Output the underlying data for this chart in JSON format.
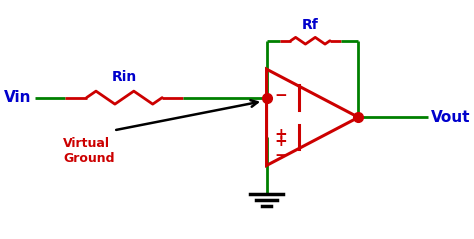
{
  "bg_color": "#ffffff",
  "green_color": "#008000",
  "red_color": "#cc0000",
  "blue_color": "#0000cc",
  "black_color": "#000000",
  "vin_label": "Vin",
  "vout_label": "Vout",
  "rin_label": "Rin",
  "rf_label": "Rf",
  "vg_label": "Virtual\nGround",
  "figsize": [
    4.74,
    2.39
  ],
  "dpi": 100,
  "xlim": [
    0,
    10
  ],
  "ylim": [
    0,
    5
  ]
}
